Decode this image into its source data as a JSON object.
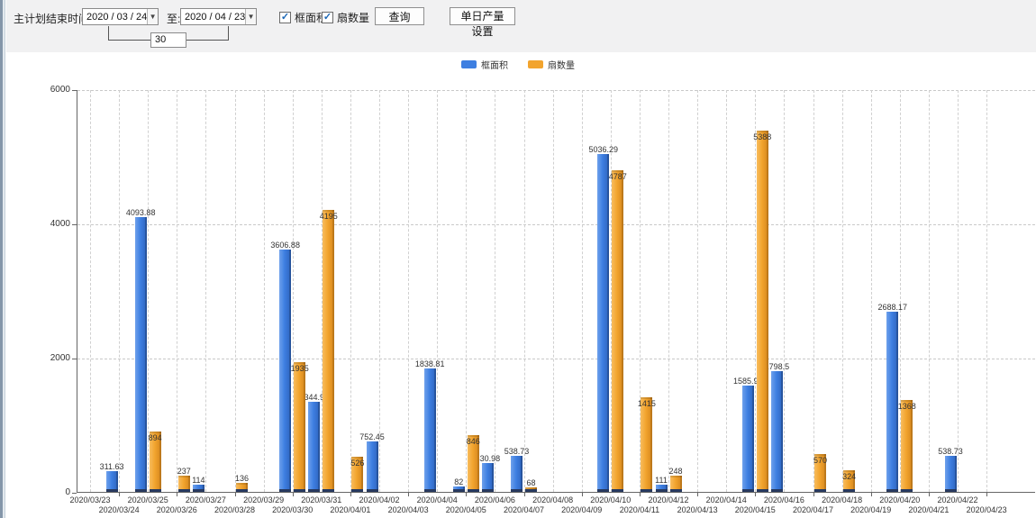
{
  "toolbar": {
    "label_main": "主计划结束时间:",
    "date_from": "2020 / 03 / 24",
    "to_label": "至:",
    "date_to": "2020 / 04 / 23",
    "days_value": "30",
    "checkbox_area_label": "框面积",
    "checkbox_fan_label": "扇数量",
    "checkbox_area_checked": "✓",
    "checkbox_fan_checked": "✓",
    "query_button": "查询",
    "daily_output_button": "单日产量设置",
    "dropdown_icon": "▼"
  },
  "legend": {
    "items": [
      {
        "label": "框面积",
        "color": "#3e7fe1"
      },
      {
        "label": "扇数量",
        "color": "#f2a42e"
      }
    ]
  },
  "chart_data": {
    "type": "bar",
    "title": "",
    "xlabel": "",
    "ylabel": "",
    "ylim": [
      0,
      6000
    ],
    "yticks": [
      0,
      2000,
      4000,
      6000
    ],
    "grid": "dashed",
    "legend_position": "top-center",
    "categories": [
      "2020/03/23",
      "2020/03/24",
      "2020/03/25",
      "2020/03/26",
      "2020/03/27",
      "2020/03/28",
      "2020/03/29",
      "2020/03/30",
      "2020/03/31",
      "2020/04/01",
      "2020/04/02",
      "2020/04/03",
      "2020/04/04",
      "2020/04/05",
      "2020/04/06",
      "2020/04/07",
      "2020/04/08",
      "2020/04/09",
      "2020/04/10",
      "2020/04/11",
      "2020/04/12",
      "2020/04/13",
      "2020/04/14",
      "2020/04/15",
      "2020/04/16",
      "2020/04/17",
      "2020/04/18",
      "2020/04/19",
      "2020/04/20",
      "2020/04/21",
      "2020/04/22",
      "2020/04/23"
    ],
    "series": [
      {
        "name": "框面积",
        "color": "#3e7fe1",
        "values": [
          null,
          311.63,
          4093.88,
          null,
          114,
          null,
          null,
          3606.88,
          1344.95,
          null,
          752.45,
          null,
          1838.81,
          82,
          430.98,
          538.73,
          null,
          null,
          5036.29,
          null,
          111,
          null,
          null,
          1585.96,
          1798.5,
          null,
          null,
          null,
          2688.17,
          null,
          538.73,
          null
        ]
      },
      {
        "name": "扇数量",
        "color": "#f2a42e",
        "values": [
          null,
          null,
          894,
          237,
          null,
          136,
          null,
          1935,
          4195,
          526,
          null,
          null,
          null,
          846,
          null,
          68,
          null,
          null,
          4787,
          1415,
          248,
          null,
          null,
          5388,
          null,
          570,
          324,
          null,
          1368,
          null,
          null,
          null
        ]
      }
    ]
  }
}
